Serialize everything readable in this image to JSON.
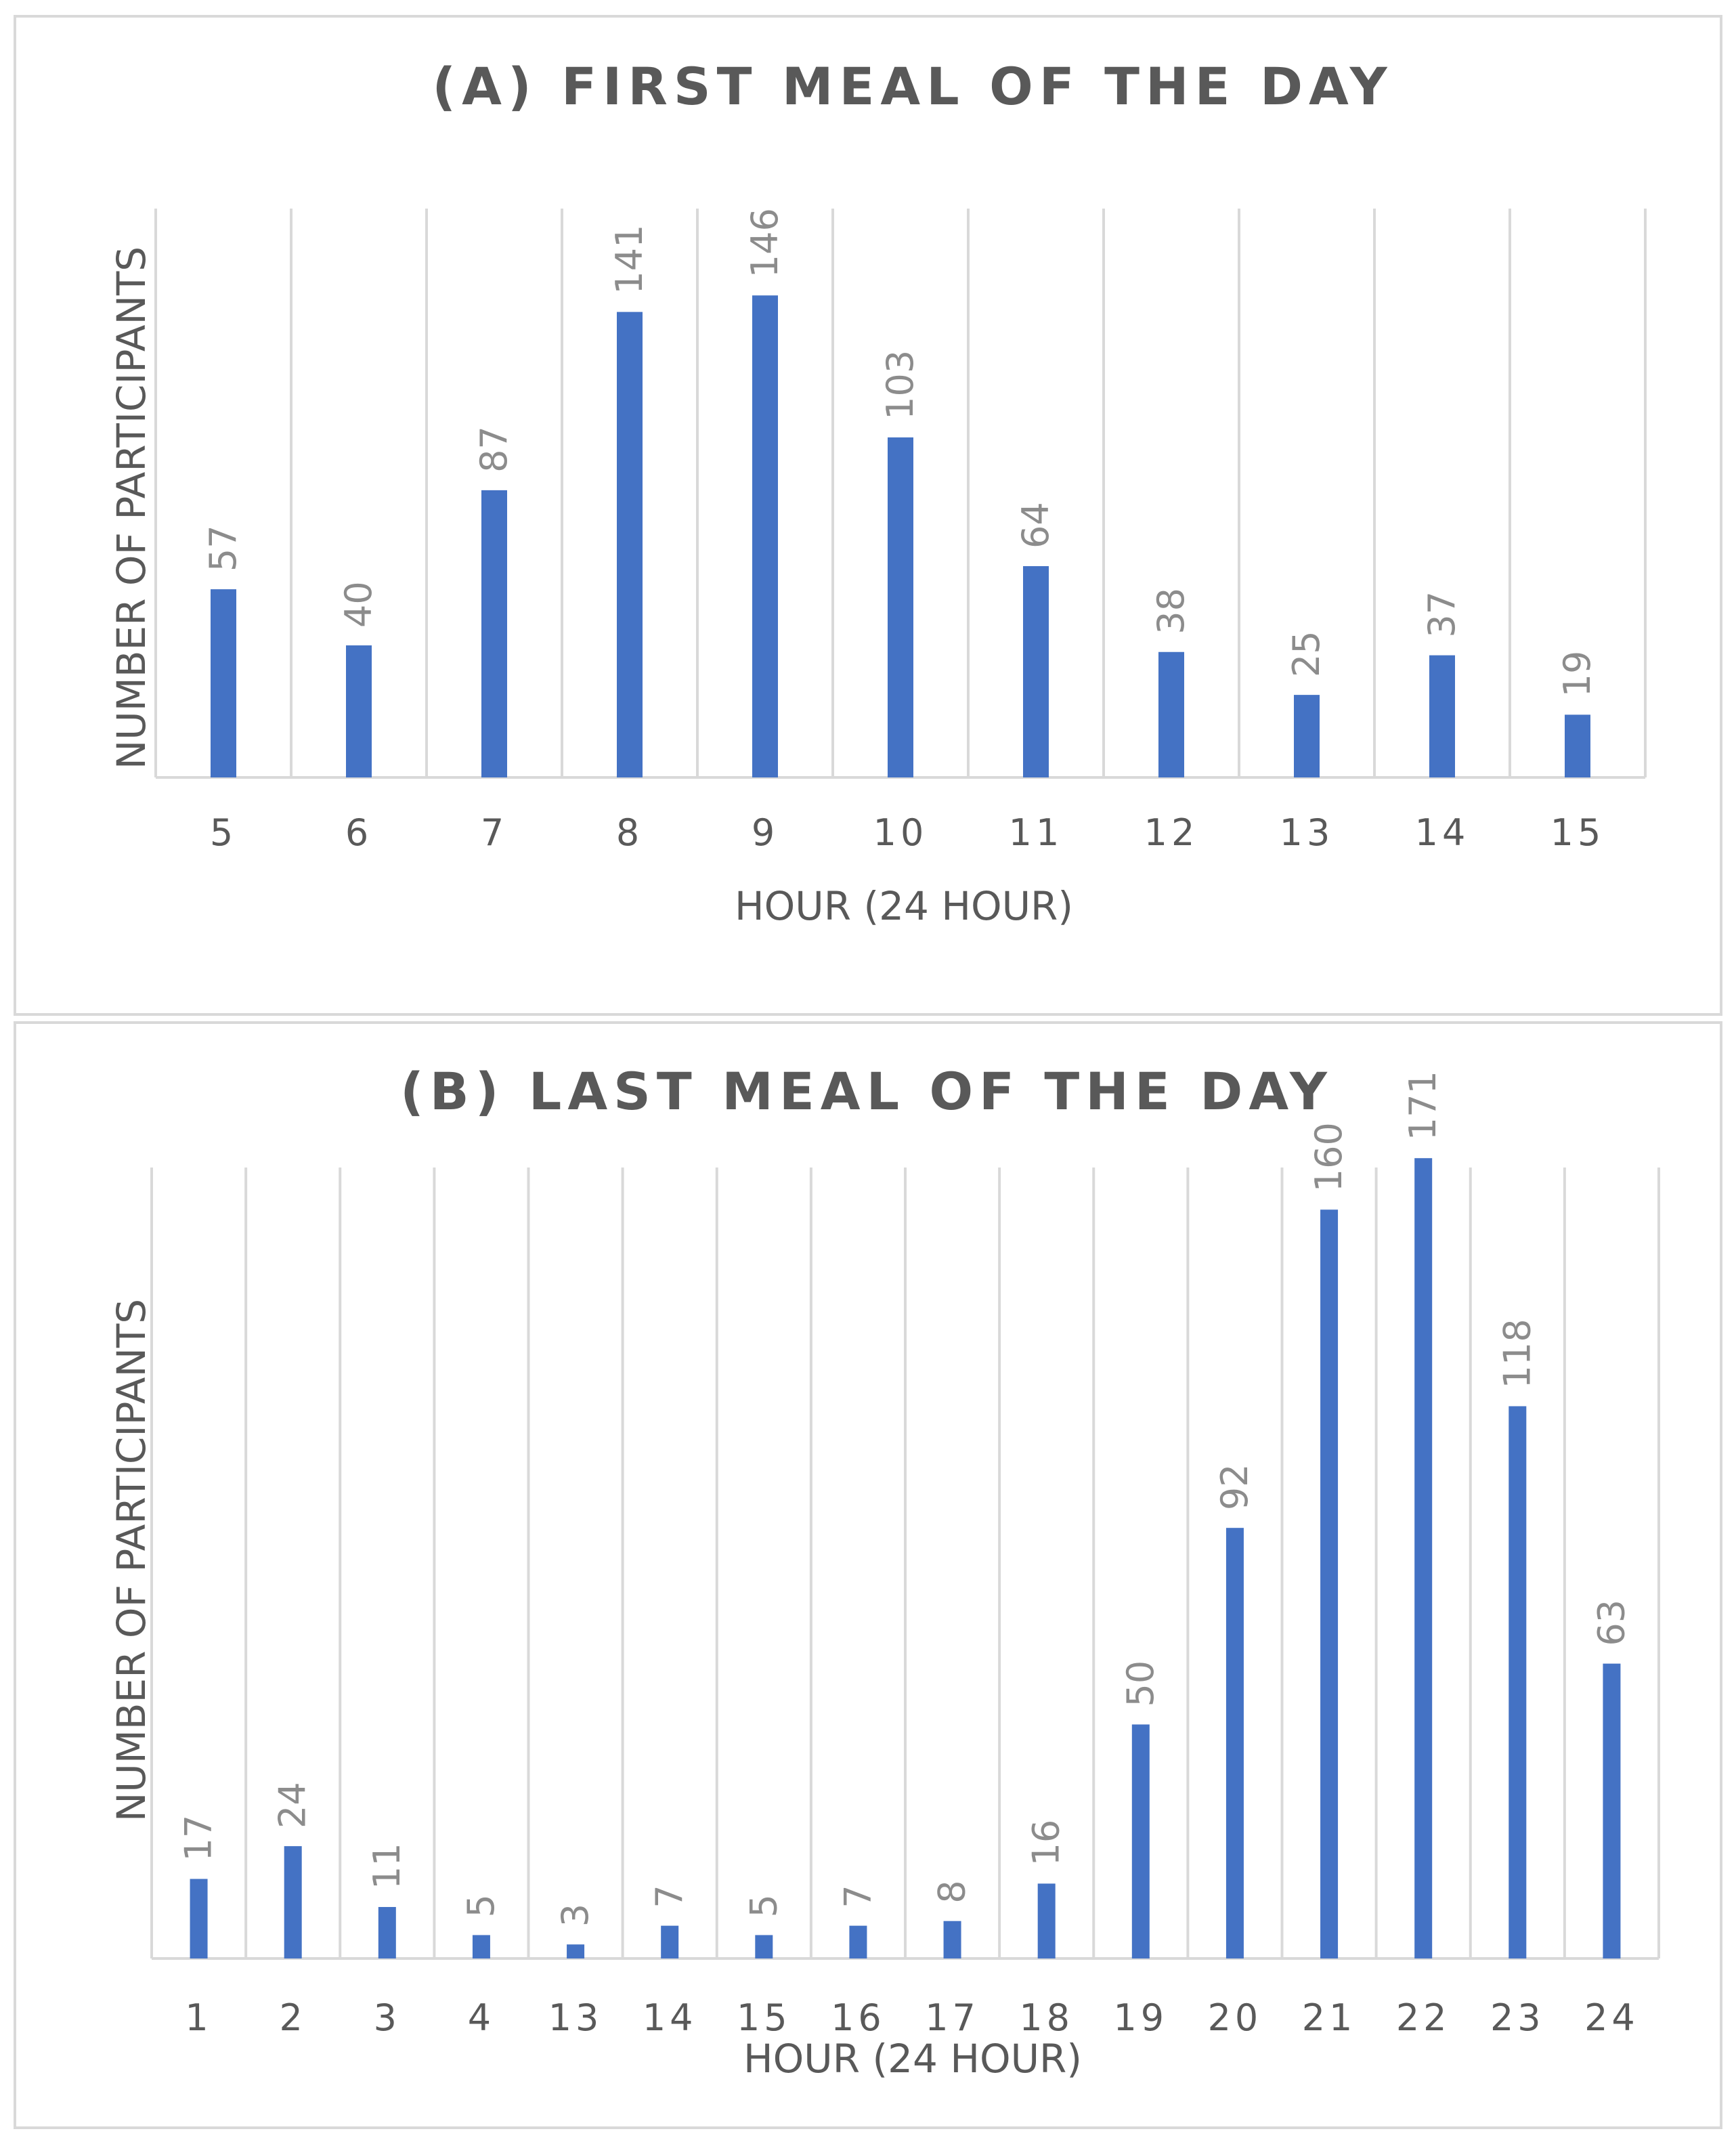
{
  "chart_data": [
    {
      "type": "bar",
      "title": "(A) FIRST MEAL OF THE DAY",
      "xlabel": "HOUR (24 HOUR)",
      "ylabel": "NUMBER OF PARTICIPANTS",
      "categories": [
        "5",
        "6",
        "7",
        "8",
        "9",
        "10",
        "11",
        "12",
        "13",
        "14",
        "15"
      ],
      "values": [
        57,
        40,
        87,
        141,
        146,
        103,
        64,
        38,
        25,
        37,
        19
      ],
      "ylim": [
        0,
        160
      ],
      "grid": "vertical",
      "data_labels": true,
      "color": "#4472c4"
    },
    {
      "type": "bar",
      "title": "(B) LAST MEAL OF THE DAY",
      "xlabel": "HOUR (24 HOUR)",
      "ylabel": "NUMBER OF PARTICIPANTS",
      "categories": [
        "1",
        "2",
        "3",
        "4",
        "13",
        "14",
        "15",
        "16",
        "17",
        "18",
        "19",
        "20",
        "21",
        "22",
        "23",
        "24"
      ],
      "values": [
        17,
        24,
        11,
        5,
        3,
        7,
        5,
        7,
        8,
        16,
        50,
        92,
        160,
        171,
        118,
        63
      ],
      "ylim": [
        0,
        180
      ],
      "grid": "vertical",
      "data_labels": true,
      "color": "#4472c4"
    }
  ]
}
